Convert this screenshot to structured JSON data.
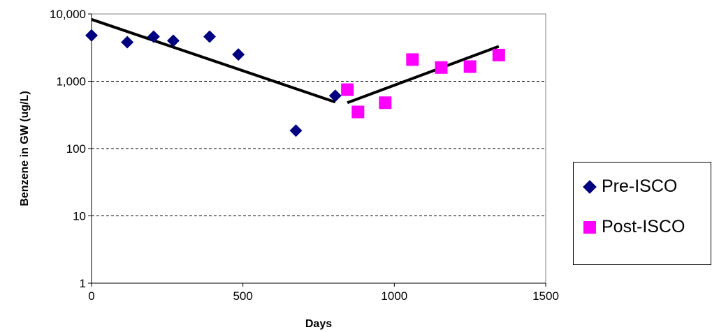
{
  "chart_data": {
    "type": "scatter",
    "title": "",
    "xlabel": "Days",
    "ylabel": "Benzene in GW (ug/L)",
    "xlim": [
      0,
      1500
    ],
    "ylim": [
      1,
      10000
    ],
    "yscale": "log",
    "grid": "horizontal dashed",
    "legend_position": "right",
    "x_ticks": [
      0,
      500,
      1000,
      1500
    ],
    "x_tick_labels": [
      "0",
      "500",
      "1000",
      "1500"
    ],
    "y_ticks": [
      1,
      10,
      100,
      1000,
      10000
    ],
    "y_tick_labels": [
      "1",
      "10",
      "100",
      "1,000",
      "10,000"
    ],
    "series": [
      {
        "name": "Pre-ISCO",
        "marker": "diamond",
        "color": "#000080",
        "points": [
          {
            "x": 0,
            "y": 4800
          },
          {
            "x": 118,
            "y": 3800
          },
          {
            "x": 205,
            "y": 4600
          },
          {
            "x": 270,
            "y": 4000
          },
          {
            "x": 390,
            "y": 4600
          },
          {
            "x": 485,
            "y": 2500
          },
          {
            "x": 675,
            "y": 185
          },
          {
            "x": 805,
            "y": 610
          }
        ]
      },
      {
        "name": "Post-ISCO",
        "marker": "square",
        "color": "#ff00ff",
        "points": [
          {
            "x": 845,
            "y": 750
          },
          {
            "x": 880,
            "y": 350
          },
          {
            "x": 970,
            "y": 480
          },
          {
            "x": 1060,
            "y": 2100
          },
          {
            "x": 1155,
            "y": 1600
          },
          {
            "x": 1250,
            "y": 1650
          },
          {
            "x": 1345,
            "y": 2450
          }
        ]
      }
    ],
    "trendlines": [
      {
        "series": "Pre-ISCO",
        "from": {
          "x": 0,
          "y": 8300
        },
        "to": {
          "x": 805,
          "y": 490
        }
      },
      {
        "series": "Post-ISCO",
        "from": {
          "x": 845,
          "y": 480
        },
        "to": {
          "x": 1345,
          "y": 3300
        }
      }
    ]
  }
}
